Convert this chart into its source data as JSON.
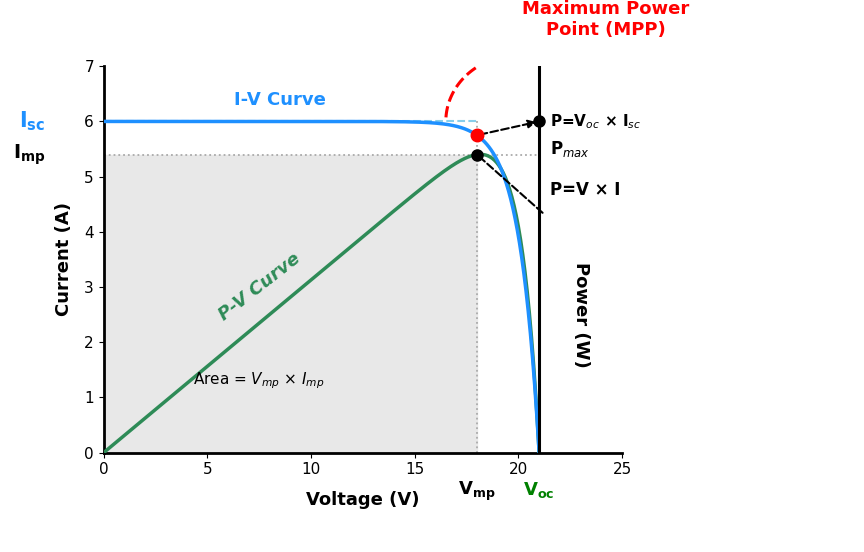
{
  "xlabel": "Voltage (V)",
  "ylabel_left": "Current (A)",
  "ylabel_right": "Power (W)",
  "xlim": [
    0,
    25
  ],
  "ylim": [
    0,
    7
  ],
  "Isc": 6.0,
  "Voc": 21.0,
  "Vmp": 18.0,
  "Imp": 5.75,
  "Pmp_scaled": 5.4,
  "iv_curve_color": "#1E90FF",
  "pv_curve_color": "#2E8B57",
  "mpp_arc_color": "#FF0000",
  "shade_color": "#e8e8e8",
  "Isc_label_color": "#1E90FF",
  "Imp_label_color": "#000000",
  "title_color": "#FF0000",
  "annotation_dot_color_black": "#000000",
  "annotation_dot_color_red": "#FF0000",
  "Isc_dash_color": "#87CEEB",
  "Imp_dash_color": "#aaaaaa",
  "Vmp_dash_color": "#aaaaaa"
}
